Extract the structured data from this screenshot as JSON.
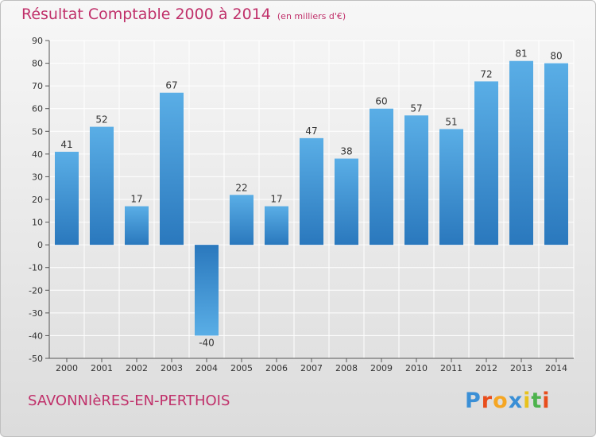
{
  "header": {
    "title": "Résultat Comptable 2000 à 2014",
    "subtitle": "(en milliers d'€)"
  },
  "footer": {
    "commune": "SAVONNIèRES-EN-PERTHOIS",
    "logo_letters": [
      "P",
      "r",
      "o",
      "x",
      "i",
      "t",
      "i"
    ],
    "logo_colors": [
      "#3a8fd6",
      "#e84d1c",
      "#f5a623",
      "#3a8fd6",
      "#e8c21c",
      "#4db34d",
      "#e84d1c"
    ]
  },
  "colors": {
    "title": "#c0306a",
    "bar_light": "#5aaee6",
    "bar_dark": "#2a78bd",
    "grid": "#ffffff",
    "axis": "#555555"
  },
  "chart_data": {
    "type": "bar",
    "title": "Résultat Comptable 2000 à 2014",
    "subtitle": "(en milliers d'€)",
    "xlabel": "",
    "ylabel": "",
    "categories": [
      "2000",
      "2001",
      "2002",
      "2003",
      "2004",
      "2005",
      "2006",
      "2007",
      "2008",
      "2009",
      "2010",
      "2011",
      "2012",
      "2013",
      "2014"
    ],
    "values": [
      41,
      52,
      17,
      67,
      -40,
      22,
      17,
      47,
      38,
      60,
      57,
      51,
      72,
      81,
      80
    ],
    "ylim": [
      -50,
      90
    ],
    "yticks": [
      -50,
      -40,
      -30,
      -20,
      -10,
      0,
      10,
      20,
      30,
      40,
      50,
      60,
      70,
      80,
      90
    ],
    "grid": true
  }
}
